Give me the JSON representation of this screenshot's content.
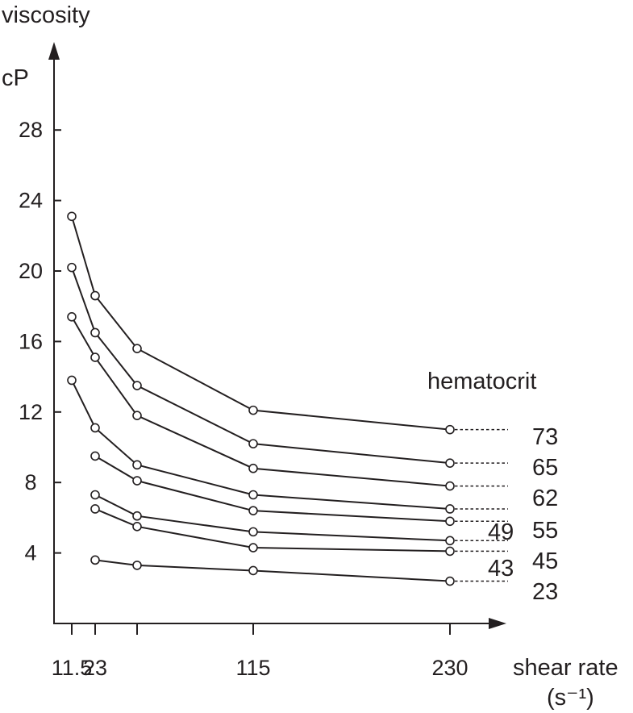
{
  "chart_data": {
    "type": "line",
    "ylabel": "viscosity",
    "yunit": "cP",
    "xlabel_line1": "shear rate",
    "xlabel_line2": "(s⁻¹)",
    "legend_title": "hematocrit",
    "ylim": [
      0,
      32
    ],
    "yticks": [
      "4",
      "8",
      "12",
      "16",
      "20",
      "24",
      "28"
    ],
    "xtick_labels": [
      {
        "x": 11.5,
        "label": "11.5"
      },
      {
        "x": 23,
        "label": "23"
      },
      {
        "x": 46,
        "label": ""
      },
      {
        "x": 115,
        "label": "115"
      },
      {
        "x": 230,
        "label": "230"
      }
    ],
    "series": [
      {
        "name": "73",
        "x": [
          11.5,
          23,
          46,
          115,
          230
        ],
        "values": [
          23.1,
          18.6,
          15.6,
          12.1,
          11.0
        ]
      },
      {
        "name": "65",
        "x": [
          11.5,
          23,
          46,
          115,
          230
        ],
        "values": [
          20.2,
          16.5,
          13.5,
          10.2,
          9.1
        ]
      },
      {
        "name": "62",
        "x": [
          11.5,
          23,
          46,
          115,
          230
        ],
        "values": [
          17.4,
          15.1,
          11.8,
          8.8,
          7.8
        ]
      },
      {
        "name": "55",
        "x": [
          11.5,
          23,
          46,
          115,
          230
        ],
        "values": [
          13.8,
          11.1,
          9.0,
          7.3,
          6.5
        ]
      },
      {
        "name": "49",
        "x": [
          23,
          46,
          115,
          230
        ],
        "values": [
          9.5,
          8.1,
          6.4,
          5.8
        ]
      },
      {
        "name": "45",
        "x": [
          23,
          46,
          115,
          230
        ],
        "values": [
          7.3,
          6.1,
          5.2,
          4.7
        ]
      },
      {
        "name": "43",
        "x": [
          23,
          46,
          115,
          230
        ],
        "values": [
          6.5,
          5.5,
          4.3,
          4.1
        ]
      },
      {
        "name": "23",
        "x": [
          23,
          46,
          115,
          230
        ],
        "values": [
          3.6,
          3.3,
          3.0,
          2.4
        ]
      }
    ]
  }
}
